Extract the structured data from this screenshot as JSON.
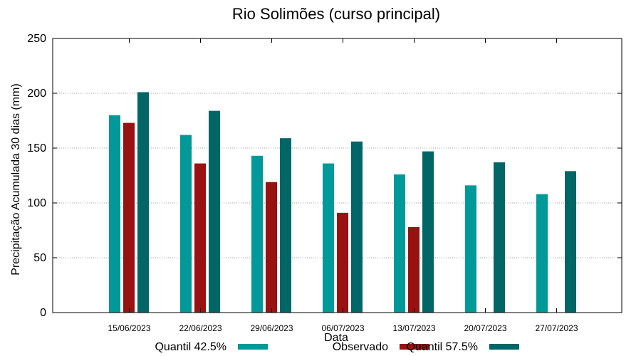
{
  "chart_data": {
    "type": "bar",
    "title": "Rio Solimões (curso principal)",
    "xlabel": "Data",
    "ylabel": "Precipitação Acumulada 30 dias (mm)",
    "ylim": [
      0,
      250
    ],
    "yticks": [
      0,
      50,
      100,
      150,
      200,
      250
    ],
    "grid": true,
    "legend_position": "bottom",
    "categories": [
      "15/06/2023",
      "22/06/2023",
      "29/06/2023",
      "06/07/2023",
      "13/07/2023",
      "20/07/2023",
      "27/07/2023"
    ],
    "series": [
      {
        "name": "Quantil 42.5%",
        "color": "#009999",
        "values": [
          180,
          162,
          143,
          136,
          126,
          116,
          108
        ]
      },
      {
        "name": "Observado",
        "color": "#991111",
        "values": [
          173,
          136,
          119,
          91,
          78,
          null,
          null
        ]
      },
      {
        "name": "Quantil 57.5%",
        "color": "#006666",
        "values": [
          201,
          184,
          159,
          156,
          147,
          137,
          129
        ]
      }
    ]
  }
}
